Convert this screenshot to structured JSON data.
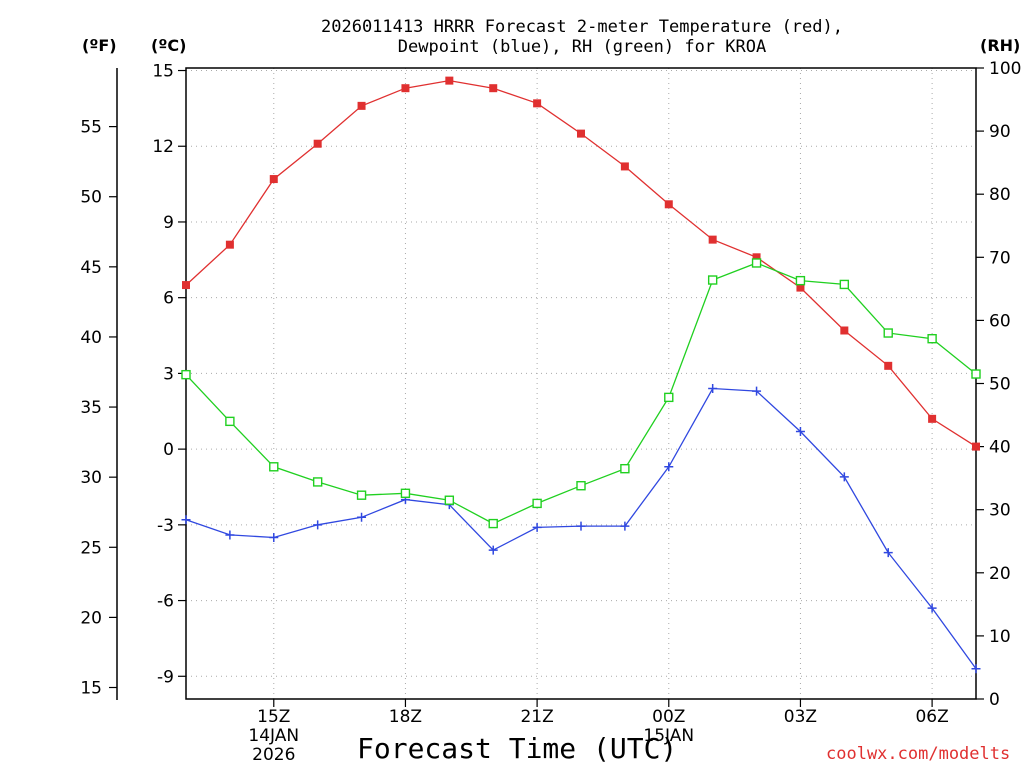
{
  "chart_data": {
    "type": "line",
    "title_lines": [
      "2026011413 HRRR Forecast 2-meter Temperature (red),",
      "Dewpoint (blue), RH (green) for KROA"
    ],
    "xlabel": "Forecast Time (UTC)",
    "credit": "coolwx.com/modelts",
    "units": {
      "fahrenheit": "(ºF)",
      "celsius": "(ºC)",
      "rh": "(RH)"
    },
    "x": [
      13,
      14,
      15,
      16,
      17,
      18,
      19,
      20,
      21,
      22,
      23,
      24,
      25,
      26,
      27,
      28,
      29,
      30,
      31
    ],
    "xlim": [
      13,
      31
    ],
    "x_ticks": [
      {
        "value": 15,
        "label": "15Z",
        "sublabel": "14JAN",
        "sublabel2": "2026"
      },
      {
        "value": 18,
        "label": "18Z",
        "sublabel": "",
        "sublabel2": ""
      },
      {
        "value": 21,
        "label": "21Z",
        "sublabel": "",
        "sublabel2": ""
      },
      {
        "value": 24,
        "label": "00Z",
        "sublabel": "15JAN",
        "sublabel2": ""
      },
      {
        "value": 27,
        "label": "03Z",
        "sublabel": "",
        "sublabel2": ""
      },
      {
        "value": 30,
        "label": "06Z",
        "sublabel": "",
        "sublabel2": ""
      }
    ],
    "y_celsius": {
      "lim": [
        -9.9,
        15.1
      ],
      "ticks": [
        "-9",
        "-6",
        "-3",
        "0",
        "3",
        "6",
        "9",
        "12",
        "15"
      ],
      "tick_values": [
        -9,
        -6,
        -3,
        0,
        3,
        6,
        9,
        12,
        15
      ]
    },
    "y_fahrenheit": {
      "ticks": [
        "15",
        "20",
        "25",
        "30",
        "35",
        "40",
        "45",
        "50",
        "55"
      ],
      "tick_values": [
        15,
        20,
        25,
        30,
        35,
        40,
        45,
        50,
        55
      ]
    },
    "y_rh": {
      "lim": [
        0,
        100
      ],
      "ticks": [
        "0",
        "10",
        "20",
        "30",
        "40",
        "50",
        "60",
        "70",
        "80",
        "90",
        "100"
      ],
      "tick_values": [
        0,
        10,
        20,
        30,
        40,
        50,
        60,
        70,
        80,
        90,
        100
      ]
    },
    "series": [
      {
        "name": "Temperature",
        "axis": "celsius",
        "color": "#e03030",
        "marker": "filled-square",
        "values": [
          6.5,
          8.1,
          10.7,
          12.1,
          13.6,
          14.3,
          14.6,
          14.3,
          13.7,
          12.5,
          11.2,
          9.7,
          8.3,
          7.6,
          6.4,
          4.7,
          3.3,
          1.2,
          0.1
        ]
      },
      {
        "name": "Dewpoint",
        "axis": "celsius",
        "color": "#3048e0",
        "marker": "plus",
        "values": [
          -2.8,
          -3.4,
          -3.5,
          -3.0,
          -2.7,
          -2.0,
          -2.2,
          -4.0,
          -3.1,
          -3.05,
          -3.05,
          -0.7,
          2.4,
          2.3,
          0.7,
          -1.1,
          -4.1,
          -6.3,
          -8.7
        ]
      },
      {
        "name": "RH",
        "axis": "rh",
        "color": "#20d020",
        "marker": "open-square",
        "values": [
          51.4,
          44.0,
          36.8,
          34.4,
          32.3,
          32.6,
          31.5,
          27.8,
          31.0,
          33.8,
          36.5,
          47.8,
          66.4,
          69.1,
          66.3,
          65.7,
          58.0,
          57.1,
          51.5
        ]
      }
    ]
  }
}
